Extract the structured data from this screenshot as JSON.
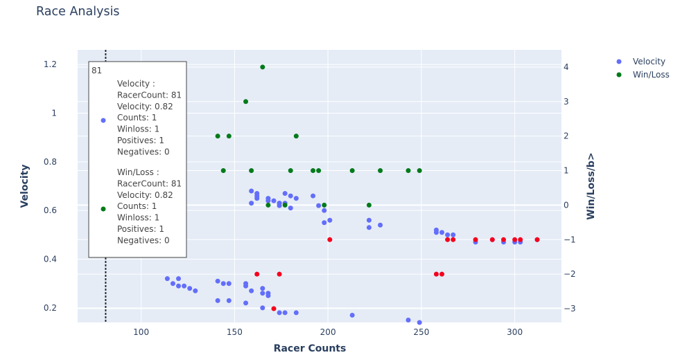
{
  "chart_data": {
    "type": "scatter",
    "title": "Race Analysis",
    "xlabel": "Racer Counts",
    "ylabel": "Velocity",
    "y2label": "Win/Loss/b>",
    "xlim": [
      66,
      325
    ],
    "ylim": [
      0.14,
      1.26
    ],
    "y2lim": [
      -3.4,
      4.5
    ],
    "xticks": [
      100,
      150,
      200,
      250,
      300
    ],
    "yticks": [
      0.2,
      0.4,
      0.6,
      0.8,
      1,
      1.2
    ],
    "yticklabels": [
      "0.2",
      "0.4",
      "0.6",
      "0.8",
      "1",
      "1.2"
    ],
    "y2ticks": [
      -3,
      -2,
      -1,
      0,
      1,
      2,
      3,
      4
    ],
    "y2ticklabels": [
      "−3",
      "−2",
      "−1",
      "0",
      "1",
      "2",
      "3",
      "4"
    ],
    "grid": true,
    "legend_position": "top-right",
    "series": [
      {
        "name": "Velocity",
        "axis": "left",
        "color": "#636efa",
        "x": [
          81,
          114,
          117,
          120,
          120,
          123,
          126,
          129,
          141,
          144,
          147,
          141,
          147,
          156,
          156,
          159,
          156,
          165,
          165,
          168,
          168,
          165,
          174,
          177,
          183,
          159,
          162,
          162,
          162,
          159,
          168,
          168,
          171,
          174,
          174,
          174,
          177,
          177,
          180,
          180,
          183,
          192,
          195,
          198,
          198,
          201,
          222,
          222,
          228,
          213,
          243,
          249,
          258,
          258,
          261,
          264,
          267,
          279,
          288,
          294,
          300,
          303,
          312
        ],
        "y": [
          0.82,
          0.32,
          0.3,
          0.32,
          0.29,
          0.29,
          0.28,
          0.27,
          0.31,
          0.3,
          0.3,
          0.23,
          0.23,
          0.3,
          0.29,
          0.27,
          0.22,
          0.28,
          0.26,
          0.26,
          0.25,
          0.2,
          0.18,
          0.18,
          0.18,
          0.68,
          0.67,
          0.66,
          0.65,
          0.63,
          0.65,
          0.64,
          0.64,
          0.63,
          0.63,
          0.62,
          0.67,
          0.63,
          0.66,
          0.61,
          0.65,
          0.66,
          0.62,
          0.6,
          0.55,
          0.56,
          0.56,
          0.53,
          0.54,
          0.17,
          0.15,
          0.14,
          0.52,
          0.51,
          0.51,
          0.5,
          0.5,
          0.47,
          0.48,
          0.47,
          0.47,
          0.47,
          0.48
        ]
      },
      {
        "name": "Win/Loss",
        "axis": "right",
        "color": "#007a1a",
        "negative_color": "#f5001d",
        "x": [
          81,
          165,
          156,
          141,
          147,
          183,
          144,
          159,
          180,
          192,
          195,
          213,
          228,
          243,
          249,
          168,
          177,
          198,
          222,
          201,
          264,
          267,
          279,
          288,
          294,
          300,
          303,
          312,
          162,
          174,
          258,
          261,
          171
        ],
        "y": [
          1,
          4,
          3,
          2,
          2,
          2,
          1,
          1,
          1,
          1,
          1,
          1,
          1,
          1,
          1,
          0,
          0,
          0,
          0,
          -1,
          -1,
          -1,
          -1,
          -1,
          -1,
          -1,
          -1,
          -1,
          -2,
          -2,
          -2,
          -2,
          -3
        ]
      }
    ],
    "hover": {
      "x": 81,
      "header": "81",
      "entries": [
        {
          "lines": [
            "Velocity :",
            "RacerCount: 81",
            "Velocity: 0.82",
            "Counts: 1",
            "Winloss: 1",
            "Positives: 1",
            "Negatives: 0"
          ],
          "color": "#636efa"
        },
        {
          "lines": [
            "Win/Loss :",
            "RacerCount: 81",
            "Velocity: 0.82",
            "Counts: 1",
            "Winloss: 1",
            "Positives: 1",
            "Negatives: 0"
          ],
          "color": "#007a1a"
        }
      ]
    }
  }
}
